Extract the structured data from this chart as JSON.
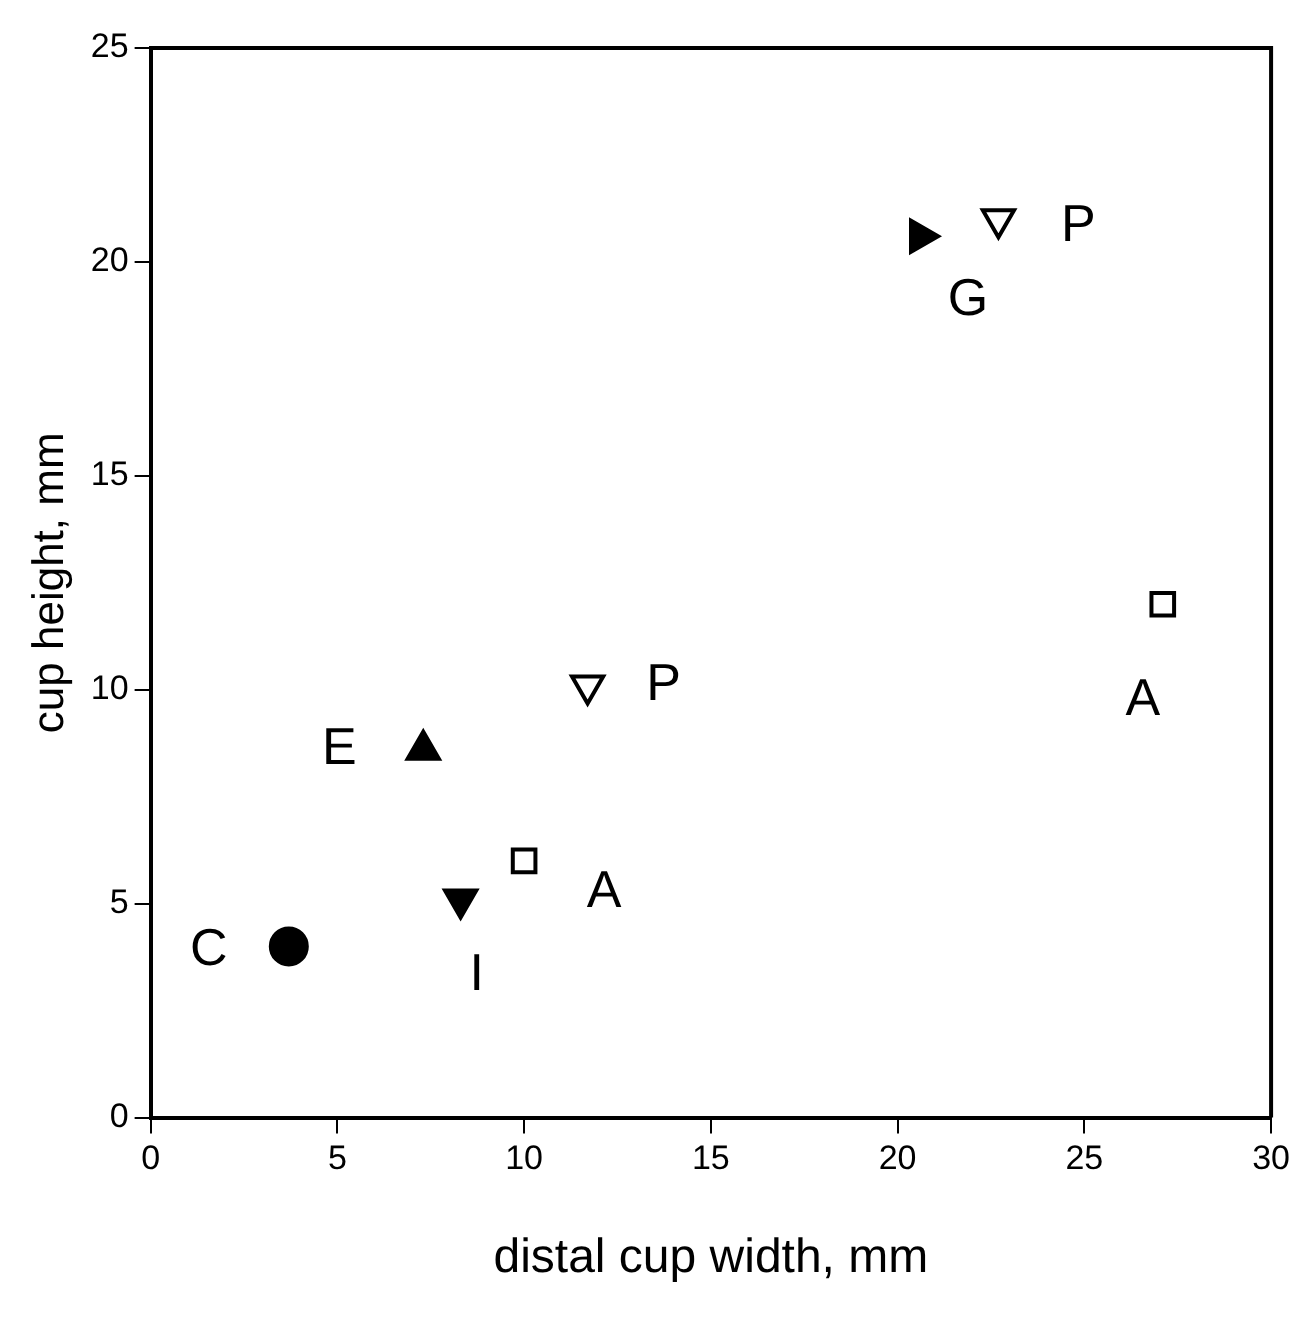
{
  "chart_data": {
    "type": "scatter",
    "xlabel": "distal cup width, mm",
    "ylabel": "cup height, mm",
    "xlim": [
      0,
      30
    ],
    "xticks": [
      0,
      5,
      10,
      15,
      20,
      25,
      30
    ],
    "ylim": [
      0,
      25
    ],
    "yticks": [
      0,
      5,
      10,
      15,
      20,
      25
    ],
    "grid": false,
    "legend": false,
    "series": [
      {
        "color": "#000000",
        "marker": "circle",
        "x": [
          3.7
        ],
        "values": [
          4
        ]
      },
      {
        "color": "#000000",
        "marker": "triangle",
        "x": [
          7.3
        ],
        "values": [
          8.6
        ]
      },
      {
        "color": "#000000",
        "marker": "triangle-down",
        "x": [
          8.3
        ],
        "values": [
          5.1
        ]
      },
      {
        "color": "#ffffff",
        "marker": "square",
        "x": [
          10,
          27.1
        ],
        "values": [
          6,
          12
        ]
      },
      {
        "color": "#ffffff",
        "marker": "triangle-down",
        "x": [
          11.7,
          22.7
        ],
        "values": [
          10.1,
          21
        ]
      },
      {
        "color": "#000000",
        "marker": "triangle-right",
        "x": [
          20.6
        ],
        "values": [
          20.6
        ]
      }
    ],
    "annotations": [
      {
        "text": "C",
        "x": 3.7,
        "y": 4
      },
      {
        "text": "E",
        "x": 7.3,
        "y": 8.6
      },
      {
        "text": "I",
        "x": 8.3,
        "y": 5.1
      },
      {
        "text": "A",
        "x": 10,
        "y": 6
      },
      {
        "text": "P",
        "x": 11.7,
        "y": 10.1
      },
      {
        "text": "G",
        "x": 20.6,
        "y": 20.6
      },
      {
        "text": "P",
        "x": 22.7,
        "y": 21
      },
      {
        "text": "A",
        "x": 27.1,
        "y": 12
      }
    ]
  }
}
